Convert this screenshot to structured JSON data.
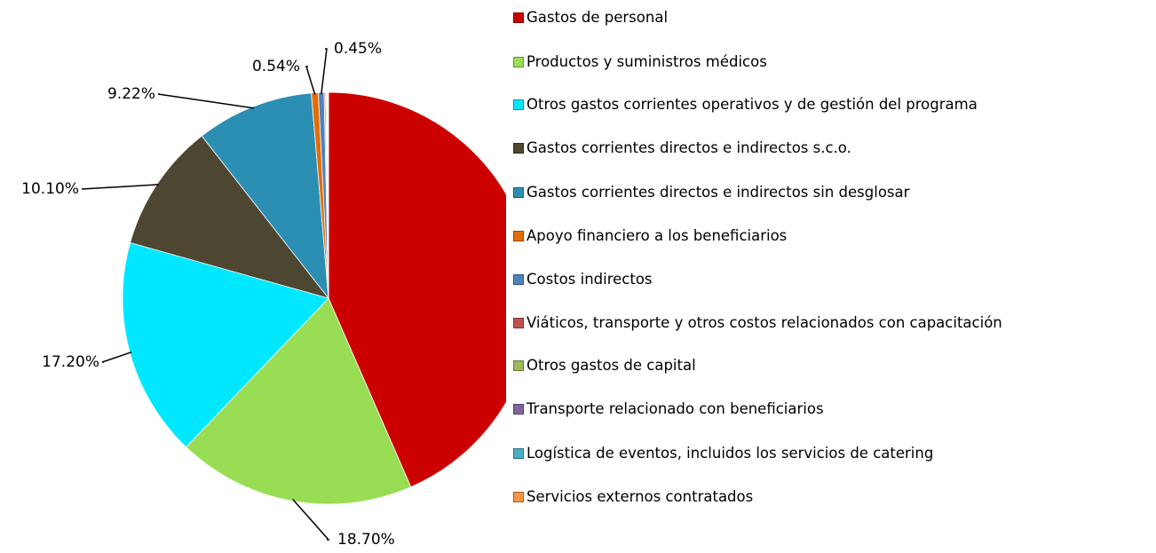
{
  "chart_data": {
    "type": "pie",
    "categories": [
      "Gastos de personal",
      "Productos y suministros médicos",
      "Otros gastos corrientes operativos y de gestión del programa",
      "Gastos corrientes directos e indirectos s.c.o.",
      "Gastos corrientes directos e indirectos sin desglosar",
      "Apoyo financiero a los beneficiarios",
      "Costos indirectos",
      "Viáticos, transporte y otros costos relacionados con capacitación",
      "Otros gastos de capital",
      "Transporte relacionado con beneficiarios",
      "Logística de eventos, incluidos los servicios de catering",
      "Servicios externos contratados"
    ],
    "values": [
      43.45,
      18.7,
      17.2,
      10.1,
      9.22,
      0.54,
      0.45,
      0.1,
      0.08,
      0.06,
      0.05,
      0.05
    ],
    "value_labels": [
      "43.45%",
      "18.70%",
      "17.20%",
      "10.10%",
      "9.22%",
      "0.54%",
      "0.45%",
      null,
      null,
      null,
      null,
      null
    ],
    "colors": [
      "#cc0000",
      "#99dd55",
      "#00e8ff",
      "#4d4630",
      "#2b8fb3",
      "#e36c09",
      "#4f81bd",
      "#c0504d",
      "#9bbb59",
      "#8064a2",
      "#4bacc6",
      "#f79646"
    ],
    "legend": "right"
  }
}
